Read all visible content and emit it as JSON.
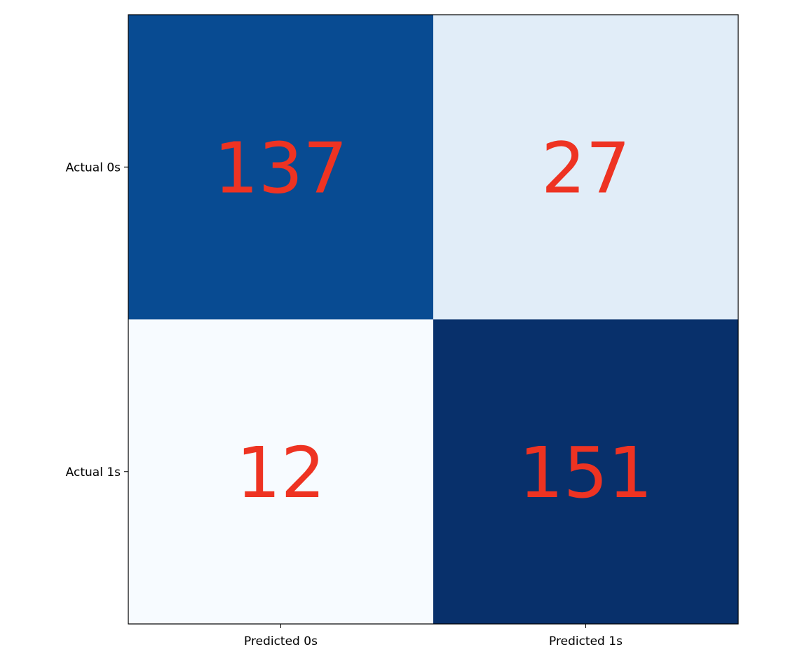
{
  "chart_data": {
    "type": "heatmap",
    "x_categories": [
      "Predicted 0s",
      "Predicted 1s"
    ],
    "y_categories": [
      "Actual 0s",
      "Actual 1s"
    ],
    "values": [
      [
        137,
        27
      ],
      [
        12,
        151
      ]
    ],
    "colormap": "Blues",
    "vmin": 12,
    "vmax": 151,
    "annotation_color": "#ee3322",
    "grid": false,
    "legend": "none"
  }
}
